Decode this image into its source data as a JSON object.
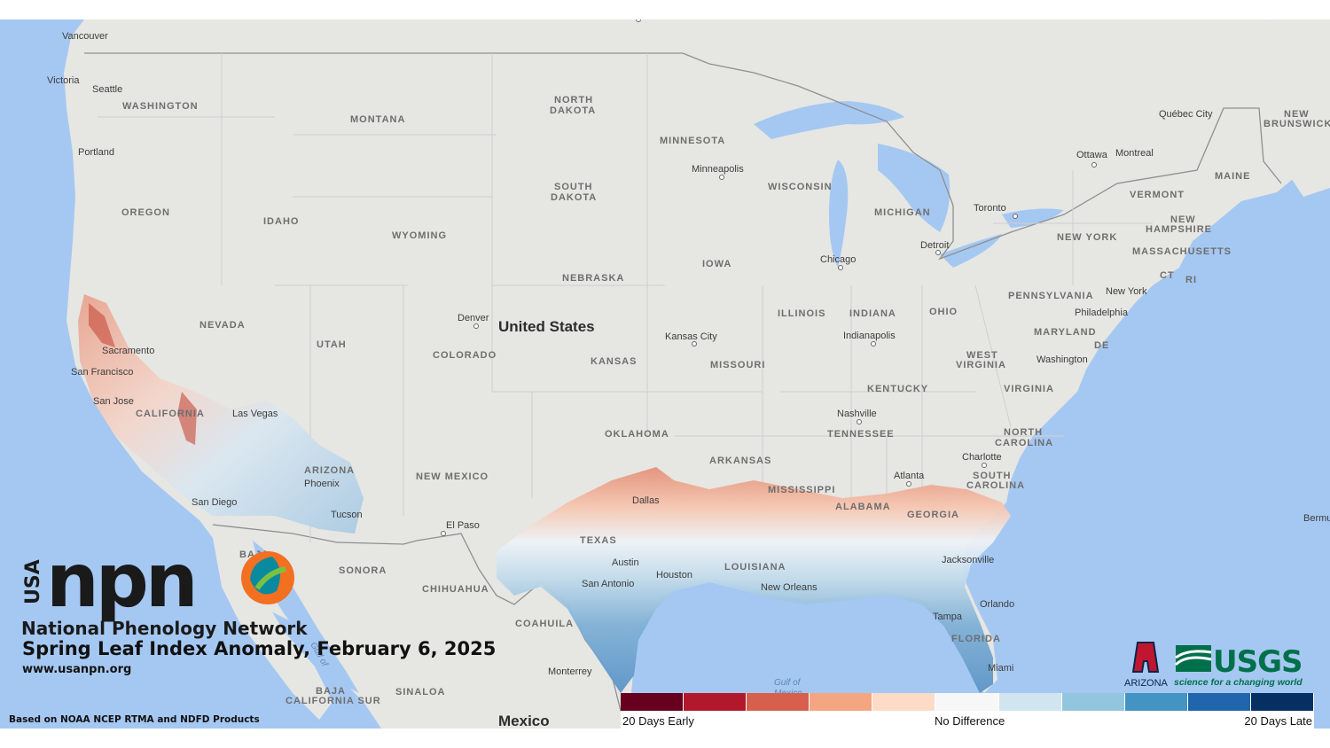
{
  "title": "Spring Leaf Index Anomaly, February 6, 2025",
  "url": "www.usanpn.org",
  "source": "Based on NOAA NCEP RTMA and NDFD Products",
  "logo": {
    "usa": "USA",
    "npn": "npn",
    "org_name": "National Phenology Network"
  },
  "partners": {
    "arizona": "ARIZONA",
    "usgs": "USGS",
    "usgs_tagline": "science for a changing world"
  },
  "legend": {
    "left": "20 Days Early",
    "middle": "No Difference",
    "right": "20 Days Late",
    "colors": [
      "#67001f",
      "#b2182b",
      "#d6604d",
      "#f4a582",
      "#fddbc7",
      "#f7f7f7",
      "#d1e5f0",
      "#92c5de",
      "#4393c3",
      "#2166ac",
      "#053061"
    ]
  },
  "map": {
    "country_labels": {
      "us": "United States",
      "mexico": "Mexico"
    },
    "states": {
      "washington": "WASHINGTON",
      "montana": "MONTANA",
      "north_dakota_1": "NORTH",
      "north_dakota_2": "DAKOTA",
      "minnesota": "MINNESOTA",
      "oregon": "OREGON",
      "idaho": "IDAHO",
      "south_dakota_1": "SOUTH",
      "south_dakota_2": "DAKOTA",
      "wisconsin": "WISCONSIN",
      "michigan": "MICHIGAN",
      "wyoming": "WYOMING",
      "nebraska": "NEBRASKA",
      "iowa": "IOWA",
      "nevada": "NEVADA",
      "utah": "UTAH",
      "colorado": "COLORADO",
      "kansas": "KANSAS",
      "missouri": "MISSOURI",
      "illinois": "ILLINOIS",
      "indiana": "INDIANA",
      "ohio": "OHIO",
      "pennsylvania": "PENNSYLVANIA",
      "new_york": "NEW YORK",
      "vermont": "VERMONT",
      "new_hampshire_1": "NEW",
      "new_hampshire_2": "HAMPSHIRE",
      "maine": "MAINE",
      "massachusetts": "MASSACHUSETTS",
      "ct": "CT",
      "ri": "RI",
      "maryland": "MARYLAND",
      "de": "DE",
      "west_virginia_1": "WEST",
      "west_virginia_2": "VIRGINIA",
      "virginia": "VIRGINIA",
      "kentucky": "KENTUCKY",
      "tennessee": "TENNESSEE",
      "north_carolina_1": "NORTH",
      "north_carolina_2": "CAROLINA",
      "south_carolina_1": "SOUTH",
      "south_carolina_2": "CAROLINA",
      "oklahoma": "OKLAHOMA",
      "arkansas": "ARKANSAS",
      "mississippi": "MISSISSIPPI",
      "alabama": "ALABAMA",
      "georgia": "GEORGIA",
      "texas": "TEXAS",
      "louisiana": "LOUISIANA",
      "florida": "FLORIDA",
      "new_mexico": "NEW MEXICO",
      "arizona": "ARIZONA",
      "california": "CALIFORNIA",
      "sonora": "SONORA",
      "chihuahua": "CHIHUAHUA",
      "coahuila": "COAHUILA",
      "sinaloa": "SINALOA",
      "baja_cs_1": "BAJA",
      "baja_cs_2": "CALIFORNIA SUR",
      "baja": "BAJA",
      "new_brunswick_1": "NEW",
      "new_brunswick_2": "BRUNSWICK"
    },
    "cities": {
      "vancouver": "Vancouver",
      "victoria": "Victoria",
      "seattle": "Seattle",
      "portland": "Portland",
      "minneapolis": "Minneapolis",
      "chicago": "Chicago",
      "detroit": "Detroit",
      "toronto": "Toronto",
      "ottawa": "Ottawa",
      "montreal": "Montreal",
      "quebec": "Québec City",
      "denver": "Denver",
      "kansas_city": "Kansas City",
      "indianapolis": "Indianapolis",
      "philadelphia": "Philadelphia",
      "new_york": "New York",
      "washington": "Washington",
      "nashville": "Nashville",
      "charlotte": "Charlotte",
      "atlanta": "Atlanta",
      "sacramento": "Sacramento",
      "san_francisco": "San Francisco",
      "san_jose": "San Jose",
      "las_vegas": "Las Vegas",
      "phoenix": "Phoenix",
      "san_diego": "San Diego",
      "tucson": "Tucson",
      "el_paso": "El Paso",
      "dallas": "Dallas",
      "austin": "Austin",
      "san_antonio": "San Antonio",
      "houston": "Houston",
      "new_orleans": "New Orleans",
      "jacksonville": "Jacksonville",
      "orlando": "Orlando",
      "tampa": "Tampa",
      "miami": "Miami",
      "monterrey": "Monterrey",
      "bermuda": "Bermu"
    },
    "water": {
      "gulf_of_1": "Gulf of",
      "gulf_mexico": "Mexico",
      "gulf_california": "Gulf of"
    }
  }
}
